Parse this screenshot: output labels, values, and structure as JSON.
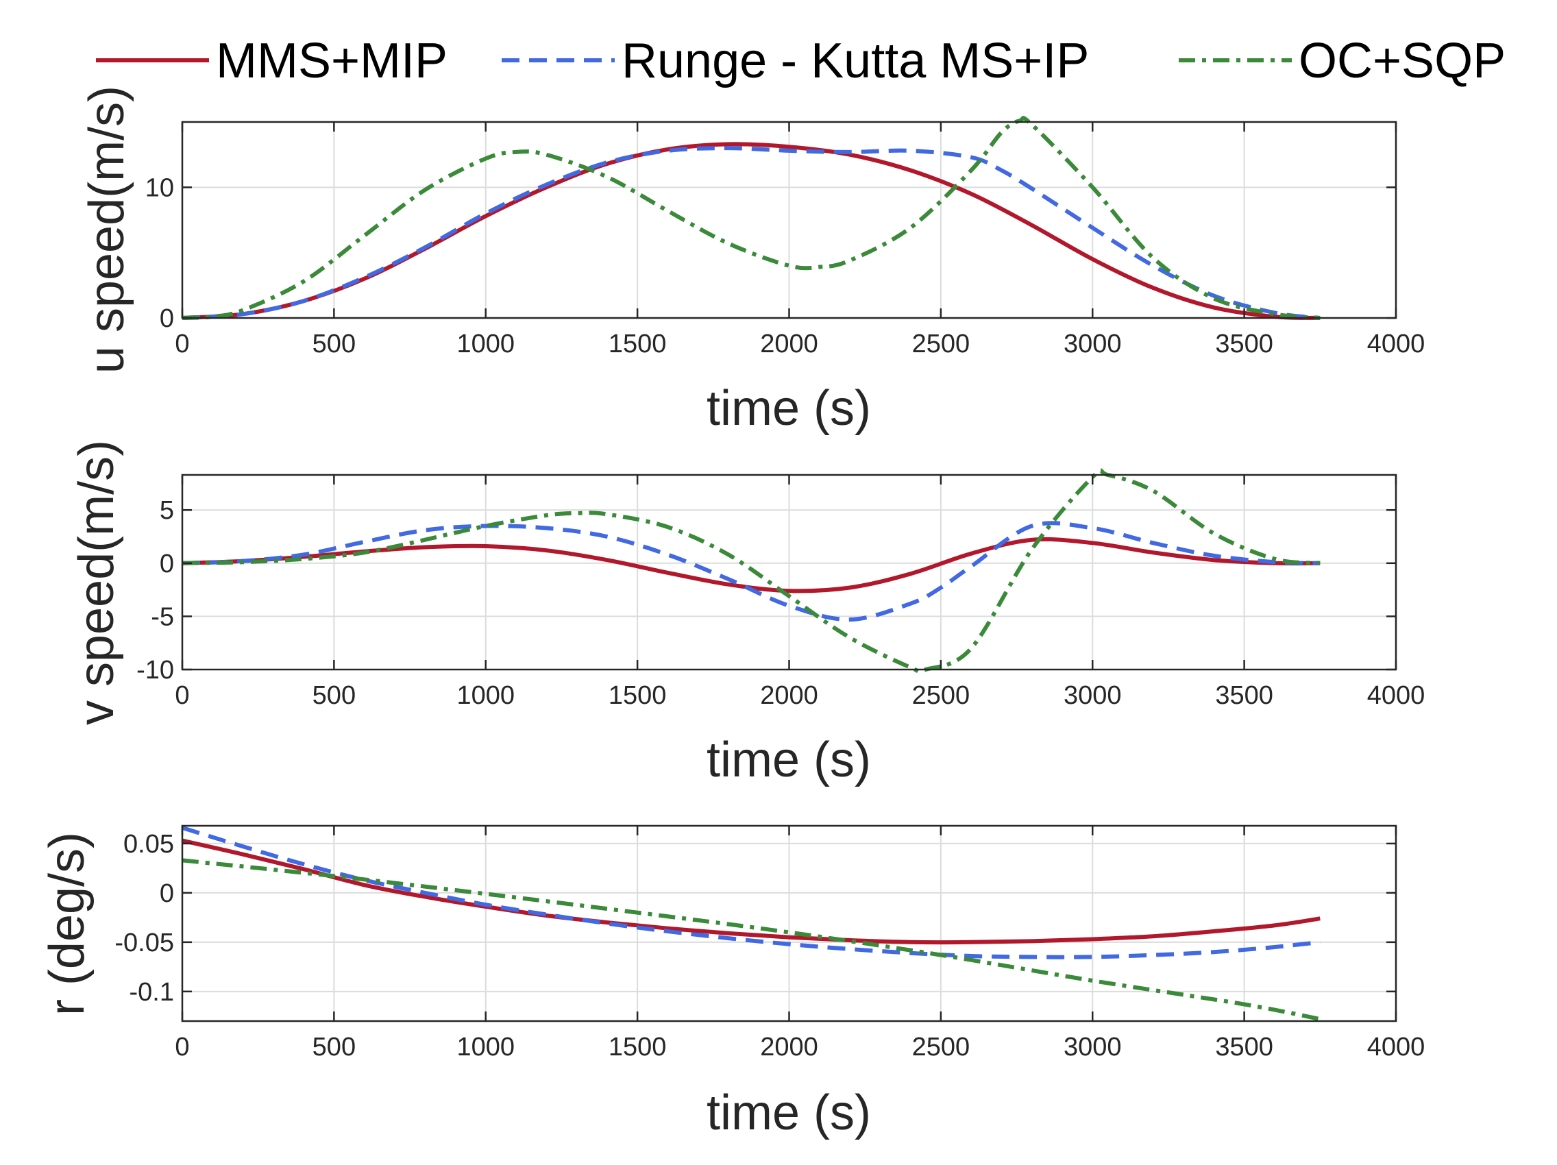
{
  "legend": {
    "entries": [
      "MMS+MIP",
      "Runge - Kutta MS+IP",
      "OC+SQP"
    ]
  },
  "chart_data": [
    {
      "type": "line",
      "title": "",
      "xlabel": "time (s)",
      "ylabel": "u speed(m/s)",
      "xlim": [
        0,
        4000
      ],
      "ylim": [
        0,
        15
      ],
      "xticks": [
        0,
        500,
        1000,
        1500,
        2000,
        2500,
        3000,
        3500,
        4000
      ],
      "xtick_labels": [
        "0",
        "500",
        "1000",
        "1500",
        "2000",
        "2500",
        "3000",
        "3500",
        "4000"
      ],
      "yticks": [
        0,
        10
      ],
      "ytick_labels": [
        "0",
        "10"
      ],
      "grid": true,
      "series": [
        {
          "name": "MMS+MIP",
          "color": "#b2182b",
          "style": "solid",
          "x": [
            0,
            200,
            400,
            600,
            800,
            1000,
            1200,
            1400,
            1600,
            1800,
            2000,
            2200,
            2400,
            2600,
            2800,
            3000,
            3200,
            3400,
            3600,
            3750
          ],
          "y": [
            0,
            0.3,
            1.3,
            3.0,
            5.3,
            7.8,
            10.0,
            11.8,
            12.9,
            13.3,
            13.1,
            12.5,
            11.3,
            9.5,
            7.1,
            4.5,
            2.3,
            0.8,
            0.1,
            0
          ]
        },
        {
          "name": "Runge - Kutta MS+IP",
          "color": "#4169e1",
          "style": "dashed",
          "x": [
            0,
            200,
            400,
            600,
            800,
            1000,
            1200,
            1400,
            1600,
            1800,
            2000,
            2200,
            2400,
            2600,
            2700,
            2800,
            3000,
            3200,
            3400,
            3600,
            3750
          ],
          "y": [
            0,
            0.3,
            1.3,
            3.1,
            5.4,
            8.0,
            10.2,
            11.9,
            12.8,
            13.0,
            12.8,
            12.7,
            12.8,
            12.3,
            11.3,
            9.9,
            6.9,
            4.0,
            1.7,
            0.4,
            0
          ]
        },
        {
          "name": "OC+SQP",
          "color": "#3a8a3a",
          "style": "dashdot",
          "x": [
            0,
            100,
            200,
            400,
            600,
            800,
            1000,
            1100,
            1200,
            1400,
            1600,
            1800,
            2000,
            2100,
            2200,
            2400,
            2600,
            2700,
            2760,
            2800,
            3000,
            3200,
            3400,
            3600,
            3750
          ],
          "y": [
            0,
            0.1,
            0.6,
            2.8,
            6.3,
            9.8,
            12.2,
            12.7,
            12.5,
            10.8,
            8.2,
            5.7,
            4.0,
            3.9,
            4.4,
            6.9,
            11.3,
            14.2,
            15.1,
            14.8,
            10.0,
            4.6,
            1.5,
            0.3,
            0
          ]
        }
      ]
    },
    {
      "type": "line",
      "title": "",
      "xlabel": "time (s)",
      "ylabel": "v speed(m/s)",
      "xlim": [
        0,
        4000
      ],
      "ylim": [
        -10,
        8.3
      ],
      "xticks": [
        0,
        500,
        1000,
        1500,
        2000,
        2500,
        3000,
        3500,
        4000
      ],
      "xtick_labels": [
        "0",
        "500",
        "1000",
        "1500",
        "2000",
        "2500",
        "3000",
        "3500",
        "4000"
      ],
      "yticks": [
        -10,
        -5,
        0,
        5
      ],
      "ytick_labels": [
        "-10",
        "-5",
        "0",
        "5"
      ],
      "grid": true,
      "series": [
        {
          "name": "MMS+MIP",
          "color": "#b2182b",
          "style": "solid",
          "x": [
            0,
            200,
            400,
            600,
            800,
            1000,
            1200,
            1400,
            1600,
            1800,
            2000,
            2200,
            2400,
            2600,
            2800,
            3000,
            3200,
            3400,
            3600,
            3750
          ],
          "y": [
            0,
            0.2,
            0.6,
            1.1,
            1.5,
            1.6,
            1.2,
            0.3,
            -0.9,
            -2.0,
            -2.6,
            -2.3,
            -1.0,
            0.9,
            2.2,
            1.9,
            1.0,
            0.3,
            0,
            0
          ]
        },
        {
          "name": "Runge - Kutta MS+IP",
          "color": "#4169e1",
          "style": "dashed",
          "x": [
            0,
            200,
            400,
            600,
            800,
            1000,
            1200,
            1400,
            1600,
            1800,
            2000,
            2200,
            2400,
            2500,
            2600,
            2800,
            3000,
            3200,
            3400,
            3600,
            3750
          ],
          "y": [
            0,
            0.2,
            0.8,
            2.0,
            3.1,
            3.5,
            3.3,
            2.5,
            0.8,
            -1.5,
            -4.0,
            -5.3,
            -3.8,
            -2.3,
            -0.3,
            3.5,
            3.3,
            1.9,
            0.7,
            0.1,
            0
          ]
        },
        {
          "name": "OC+SQP",
          "color": "#3a8a3a",
          "style": "dashdot",
          "x": [
            0,
            200,
            400,
            600,
            800,
            1000,
            1200,
            1300,
            1400,
            1600,
            1800,
            2000,
            2200,
            2400,
            2450,
            2600,
            2800,
            3000,
            3050,
            3200,
            3400,
            3600,
            3750
          ],
          "y": [
            0,
            0.1,
            0.4,
            1.0,
            2.2,
            3.5,
            4.5,
            4.7,
            4.6,
            3.4,
            0.8,
            -3.1,
            -7.0,
            -9.8,
            -10.0,
            -8.0,
            1.3,
            8.1,
            8.3,
            6.8,
            2.8,
            0.4,
            0
          ]
        }
      ]
    },
    {
      "type": "line",
      "title": "",
      "xlabel": "time (s)",
      "ylabel": "r (deg/s)",
      "xlim": [
        0,
        4000
      ],
      "ylim": [
        -0.13,
        0.068
      ],
      "xticks": [
        0,
        500,
        1000,
        1500,
        2000,
        2500,
        3000,
        3500,
        4000
      ],
      "xtick_labels": [
        "0",
        "500",
        "1000",
        "1500",
        "2000",
        "2500",
        "3000",
        "3500",
        "4000"
      ],
      "yticks": [
        -0.1,
        -0.05,
        0,
        0.05
      ],
      "ytick_labels": [
        "-0.1",
        "-0.05",
        "0",
        "0.05"
      ],
      "grid": true,
      "series": [
        {
          "name": "MMS+MIP",
          "color": "#b2182b",
          "style": "solid",
          "x": [
            0,
            200,
            400,
            600,
            800,
            1000,
            1200,
            1400,
            1600,
            1800,
            2000,
            2200,
            2400,
            2600,
            2800,
            3000,
            3200,
            3400,
            3600,
            3750
          ],
          "y": [
            0.053,
            0.039,
            0.024,
            0.008,
            -0.004,
            -0.014,
            -0.023,
            -0.03,
            -0.036,
            -0.041,
            -0.045,
            -0.048,
            -0.05,
            -0.05,
            -0.049,
            -0.047,
            -0.044,
            -0.039,
            -0.033,
            -0.026
          ]
        },
        {
          "name": "Runge - Kutta MS+IP",
          "color": "#4169e1",
          "style": "dashed",
          "x": [
            0,
            200,
            400,
            600,
            800,
            1000,
            1200,
            1400,
            1600,
            1800,
            2000,
            2200,
            2400,
            2600,
            2800,
            3000,
            3200,
            3400,
            3600,
            3750
          ],
          "y": [
            0.066,
            0.047,
            0.029,
            0.013,
            0.0,
            -0.012,
            -0.022,
            -0.031,
            -0.039,
            -0.046,
            -0.052,
            -0.057,
            -0.061,
            -0.064,
            -0.065,
            -0.065,
            -0.063,
            -0.06,
            -0.055,
            -0.05
          ]
        },
        {
          "name": "OC+SQP",
          "color": "#3a8a3a",
          "style": "dashdot",
          "x": [
            0,
            500,
            1000,
            1500,
            2000,
            2500,
            3000,
            3500,
            3750
          ],
          "y": [
            0.033,
            0.017,
            -0.001,
            -0.02,
            -0.04,
            -0.063,
            -0.089,
            -0.113,
            -0.128
          ]
        }
      ]
    }
  ]
}
